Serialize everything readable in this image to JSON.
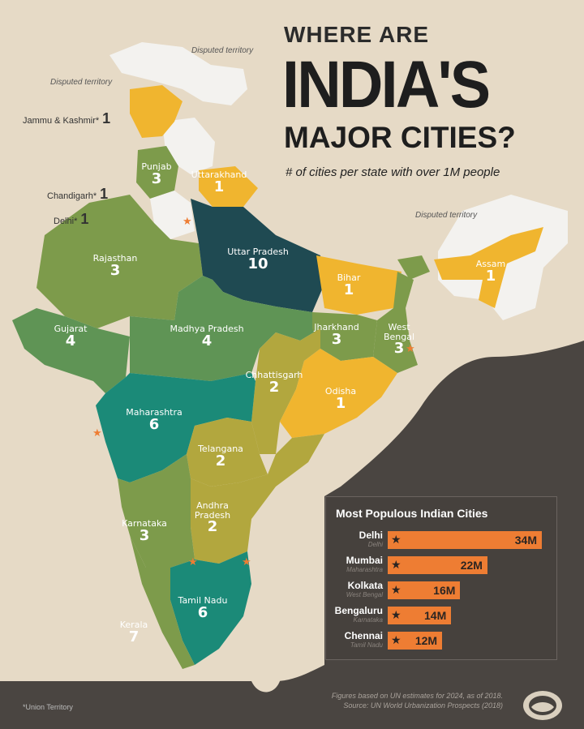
{
  "title": {
    "line1": "WHERE ARE",
    "line2": "INDIA'S",
    "line3": "MAJOR CITIES?",
    "subtitle": "# of cities per state with over 1M people"
  },
  "disputed": [
    "Disputed territory",
    "Disputed territory",
    "Disputed territory"
  ],
  "colors": {
    "land": "#e6dac6",
    "ocean": "#4a4541",
    "none": "#f3f2ef",
    "one": "#f0b52f",
    "two_olive": "#b2a73e",
    "three": "#7d9b4b",
    "four": "#5f9455",
    "six": "#1b8a78",
    "ten": "#1f4a52",
    "accent": "#ee7d33"
  },
  "side_labels": [
    {
      "name": "Jammu & Kashmir*",
      "count": "1"
    },
    {
      "name": "Chandigarh*",
      "count": "1"
    },
    {
      "name": "Delhi*",
      "count": "1"
    }
  ],
  "states": [
    {
      "name": "Punjab",
      "count": "3"
    },
    {
      "name": "Uttarakhand",
      "count": "1"
    },
    {
      "name": "Rajasthan",
      "count": "3"
    },
    {
      "name": "Uttar Pradesh",
      "count": "10"
    },
    {
      "name": "Bihar",
      "count": "1"
    },
    {
      "name": "Assam",
      "count": "1"
    },
    {
      "name": "Gujarat",
      "count": "4"
    },
    {
      "name": "Madhya Pradesh",
      "count": "4"
    },
    {
      "name": "Jharkhand",
      "count": "3"
    },
    {
      "name": "West Bengal",
      "count": "3"
    },
    {
      "name": "Chhattisgarh",
      "count": "2"
    },
    {
      "name": "Odisha",
      "count": "1"
    },
    {
      "name": "Maharashtra",
      "count": "6"
    },
    {
      "name": "Telangana",
      "count": "2"
    },
    {
      "name": "Andhra Pradesh",
      "count": "2"
    },
    {
      "name": "Karnataka",
      "count": "3"
    },
    {
      "name": "Tamil Nadu",
      "count": "6"
    },
    {
      "name": "Kerala",
      "count": "7"
    }
  ],
  "chart_data": {
    "type": "bar",
    "title": "Most Populous Indian Cities",
    "categories": [
      "Delhi",
      "Mumbai",
      "Kolkata",
      "Bengaluru",
      "Chennai"
    ],
    "subcategories": [
      "Delhi",
      "Maharashtra",
      "West Bengal",
      "Karnataka",
      "Tamil Nadu"
    ],
    "values": [
      34,
      22,
      16,
      14,
      12
    ],
    "labels": [
      "34M",
      "22M",
      "16M",
      "14M",
      "12M"
    ],
    "unit": "M"
  },
  "footer": {
    "note": "Figures based on UN estimates for 2024, as of 2018.",
    "source": "Source: UN World Urbanization Prospects (2018)",
    "footnote": "*Union Territory"
  }
}
